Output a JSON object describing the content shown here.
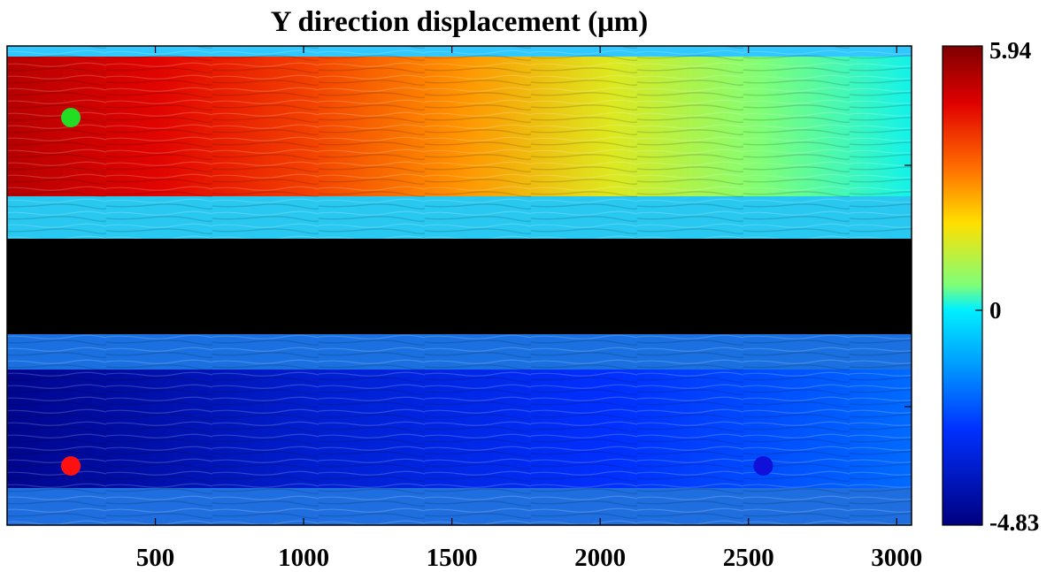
{
  "chart_data": {
    "type": "heatmap",
    "title": "Y direction displacement (μm)",
    "xlabel": "",
    "ylabel": "",
    "xlim": [
      0,
      3050
    ],
    "xticks": [
      500,
      1000,
      1500,
      2000,
      2500,
      3000
    ],
    "colormap": "jet",
    "color_range": [
      -4.83,
      5.94
    ],
    "colorbar": {
      "ticks": [
        5.94,
        0,
        -4.83
      ],
      "labels": [
        "5.94",
        "0",
        "-4.83"
      ],
      "placement": "right"
    },
    "masked_region_color": "#000000",
    "upper_band": {
      "description": "",
      "values_left_to_right": [
        5.2,
        4.6,
        3.8,
        2.8,
        1.6,
        0.6,
        0.1
      ]
    },
    "lower_band": {
      "values_left_to_right": [
        -4.6,
        -4.1,
        -3.5,
        -3.1,
        -2.7,
        -2.3,
        -1.9
      ]
    },
    "markers": [
      {
        "color": "#22dd22",
        "x": 215,
        "band": "upper"
      },
      {
        "color": "#ff1010",
        "x": 215,
        "band": "lower"
      },
      {
        "color": "#1010d8",
        "x": 2550,
        "band": "lower"
      }
    ]
  }
}
